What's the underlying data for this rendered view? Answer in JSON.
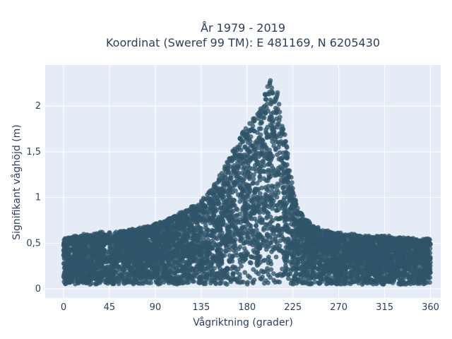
{
  "chart_data": {
    "type": "scatter",
    "title": "År 1979 - 2019",
    "subtitle": "Koordinat (Sweref 99 TM): E 481169, N 6205430",
    "xlabel": "Vågriktning (grader)",
    "ylabel": "Signifikant våghöjd (m)",
    "xlim": [
      -18,
      370
    ],
    "ylim": [
      -0.1,
      2.45
    ],
    "xticks": [
      0,
      45,
      90,
      135,
      180,
      225,
      270,
      315,
      360
    ],
    "xtick_labels": [
      "0",
      "45",
      "90",
      "135",
      "180",
      "225",
      "270",
      "315",
      "360"
    ],
    "yticks": [
      0,
      0.5,
      1,
      1.5,
      2
    ],
    "ytick_labels": [
      "0",
      "0,5",
      "1",
      "1,5",
      "2"
    ],
    "grid": true,
    "marker_color": "#2f5469",
    "background_color": "#e5ecf6",
    "x": [
      0,
      5,
      10,
      15,
      20,
      25,
      30,
      35,
      40,
      45,
      50,
      55,
      60,
      65,
      70,
      75,
      80,
      85,
      90,
      95,
      100,
      105,
      110,
      115,
      120,
      125,
      130,
      135,
      140,
      145,
      150,
      155,
      160,
      165,
      170,
      175,
      180,
      185,
      190,
      195,
      200,
      205,
      210,
      215,
      220,
      225,
      230,
      235,
      240,
      245,
      250,
      255,
      260,
      265,
      270,
      275,
      280,
      285,
      290,
      295,
      300,
      305,
      310,
      315,
      320,
      325,
      330,
      335,
      340,
      345,
      350,
      355,
      360
    ],
    "y_min": [
      0.05,
      0.05,
      0.05,
      0.05,
      0.05,
      0.05,
      0.05,
      0.05,
      0.05,
      0.05,
      0.05,
      0.05,
      0.05,
      0.05,
      0.05,
      0.05,
      0.05,
      0.05,
      0.05,
      0.05,
      0.05,
      0.05,
      0.05,
      0.05,
      0.05,
      0.05,
      0.05,
      0.05,
      0.05,
      0.05,
      0.05,
      0.05,
      0.05,
      0.05,
      0.05,
      0.05,
      0.05,
      0.05,
      0.05,
      0.05,
      0.05,
      0.05,
      0.05,
      0.05,
      0.05,
      0.05,
      0.05,
      0.05,
      0.05,
      0.05,
      0.05,
      0.05,
      0.05,
      0.05,
      0.05,
      0.05,
      0.05,
      0.05,
      0.05,
      0.05,
      0.05,
      0.05,
      0.05,
      0.05,
      0.05,
      0.05,
      0.05,
      0.05,
      0.05,
      0.05,
      0.05,
      0.05,
      0.05
    ],
    "y_max": [
      0.55,
      0.56,
      0.58,
      0.58,
      0.6,
      0.6,
      0.6,
      0.62,
      0.62,
      0.62,
      0.62,
      0.63,
      0.64,
      0.65,
      0.66,
      0.67,
      0.68,
      0.7,
      0.72,
      0.73,
      0.75,
      0.78,
      0.8,
      0.84,
      0.87,
      0.9,
      0.93,
      0.97,
      1.02,
      1.1,
      1.18,
      1.28,
      1.38,
      1.5,
      1.6,
      1.7,
      1.78,
      1.85,
      1.92,
      2.05,
      2.22,
      2.32,
      2.15,
      1.85,
      1.5,
      1.1,
      0.9,
      0.8,
      0.75,
      0.7,
      0.68,
      0.66,
      0.64,
      0.62,
      0.62,
      0.6,
      0.6,
      0.6,
      0.58,
      0.58,
      0.58,
      0.58,
      0.58,
      0.58,
      0.58,
      0.56,
      0.56,
      0.56,
      0.56,
      0.55,
      0.55,
      0.55,
      0.55
    ]
  }
}
